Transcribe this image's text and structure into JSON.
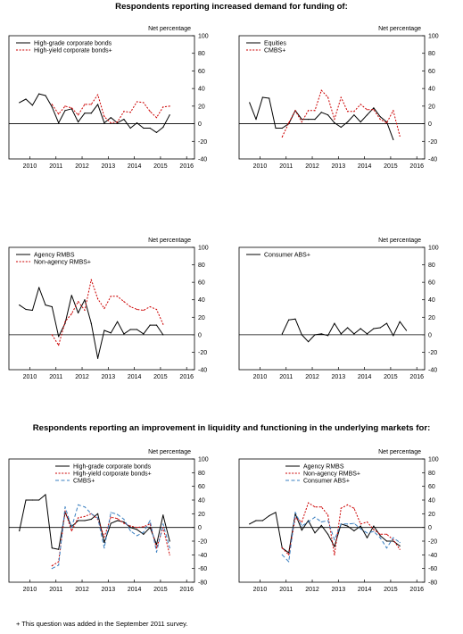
{
  "section_titles": {
    "top": "Respondents reporting increased demand for funding of:",
    "bottom": "Respondents reporting an improvement in liquidity and functioning in the underlying markets for:"
  },
  "footnote": "+ This question was added in the September 2011 survey.",
  "colors": {
    "black": "#000000",
    "red": "#cc0000",
    "blue": "#3a7fc0"
  },
  "chart_data": [
    {
      "type": "line",
      "ylabel": "Net percentage",
      "ylim": [
        -40,
        100
      ],
      "yticks": [
        "-40",
        "-20",
        "0",
        "20",
        "40",
        "60",
        "80",
        "100"
      ],
      "xticks": [
        "2010",
        "2011",
        "2012",
        "2013",
        "2014",
        "2015",
        "2016"
      ],
      "xlim": [
        2009.2,
        2016.3
      ],
      "legend": "top-left",
      "x": [
        2009.6,
        2009.85,
        2010.1,
        2010.35,
        2010.6,
        2010.85,
        2011.1,
        2011.35,
        2011.6,
        2011.85,
        2012.1,
        2012.35,
        2012.6,
        2012.85,
        2013.1,
        2013.35,
        2013.6,
        2013.85,
        2014.1,
        2014.35,
        2014.6,
        2014.85,
        2015.1,
        2015.35,
        2015.6
      ],
      "series": [
        {
          "name": "High-grade corporate bonds",
          "color": "#000000",
          "dash": "solid",
          "values": [
            24,
            28,
            21,
            34,
            32,
            19,
            1,
            15,
            17,
            2,
            12,
            12,
            22,
            1,
            7,
            1,
            5,
            -5,
            1,
            -5,
            -5,
            -10,
            -4,
            10,
            null
          ]
        },
        {
          "name": "High-yield corporate bonds+",
          "color": "#cc0000",
          "dash": "dotted",
          "values": [
            null,
            null,
            null,
            null,
            null,
            22,
            11,
            20,
            18,
            10,
            22,
            22,
            33,
            8,
            1,
            2,
            14,
            13,
            25,
            24,
            14,
            7,
            19,
            20,
            null
          ]
        }
      ]
    },
    {
      "type": "line",
      "ylabel": "Net percentage",
      "ylim": [
        -40,
        100
      ],
      "yticks": [
        "-40",
        "-20",
        "0",
        "20",
        "40",
        "60",
        "80",
        "100"
      ],
      "xticks": [
        "2010",
        "2011",
        "2012",
        "2013",
        "2014",
        "2015",
        "2016"
      ],
      "xlim": [
        2009.2,
        2016.3
      ],
      "legend": "top-left",
      "x": [
        2009.6,
        2009.85,
        2010.1,
        2010.35,
        2010.6,
        2010.85,
        2011.1,
        2011.35,
        2011.6,
        2011.85,
        2012.1,
        2012.35,
        2012.6,
        2012.85,
        2013.1,
        2013.35,
        2013.6,
        2013.85,
        2014.1,
        2014.35,
        2014.6,
        2014.85,
        2015.1,
        2015.35,
        2015.6,
        2015.8
      ],
      "series": [
        {
          "name": "Equities",
          "color": "#000000",
          "dash": "solid",
          "values": [
            24,
            5,
            30,
            29,
            -5,
            -5,
            0,
            15,
            5,
            5,
            5,
            13,
            10,
            1,
            -4,
            2,
            10,
            2,
            10,
            18,
            8,
            2,
            -18,
            null,
            null,
            null
          ]
        },
        {
          "name": "CMBS+",
          "color": "#cc0000",
          "dash": "dotted",
          "values": [
            null,
            null,
            null,
            null,
            null,
            -15,
            1,
            15,
            2,
            15,
            15,
            38,
            30,
            5,
            30,
            14,
            14,
            22,
            16,
            16,
            5,
            1,
            15,
            -14,
            null,
            null
          ]
        }
      ]
    },
    {
      "type": "line",
      "ylabel": "Net percentage",
      "ylim": [
        -40,
        100
      ],
      "yticks": [
        "-40",
        "-20",
        "0",
        "20",
        "40",
        "60",
        "80",
        "100"
      ],
      "xticks": [
        "2010",
        "2011",
        "2012",
        "2013",
        "2014",
        "2015",
        "2016"
      ],
      "xlim": [
        2009.2,
        2016.3
      ],
      "legend": "top-left",
      "x": [
        2009.6,
        2009.85,
        2010.1,
        2010.35,
        2010.6,
        2010.85,
        2011.1,
        2011.35,
        2011.6,
        2011.85,
        2012.1,
        2012.35,
        2012.6,
        2012.85,
        2013.1,
        2013.35,
        2013.6,
        2013.85,
        2014.1,
        2014.35,
        2014.6,
        2014.85,
        2015.1,
        2015.35,
        2015.6
      ],
      "series": [
        {
          "name": "Agency RMBS",
          "color": "#000000",
          "dash": "solid",
          "values": [
            34,
            29,
            28,
            54,
            34,
            32,
            -2,
            13,
            45,
            25,
            40,
            13,
            -27,
            5,
            2,
            15,
            1,
            6,
            6,
            1,
            11,
            11,
            0,
            null,
            null
          ]
        },
        {
          "name": "Non-agency RMBS+",
          "color": "#cc0000",
          "dash": "dotted",
          "values": [
            null,
            null,
            null,
            null,
            null,
            0,
            -12,
            15,
            24,
            38,
            28,
            63,
            41,
            30,
            44,
            44,
            38,
            32,
            29,
            28,
            32,
            29,
            12,
            null,
            null
          ]
        }
      ]
    },
    {
      "type": "line",
      "ylabel": "Net percentage",
      "ylim": [
        -40,
        100
      ],
      "yticks": [
        "-40",
        "-20",
        "0",
        "20",
        "40",
        "60",
        "80",
        "100"
      ],
      "xticks": [
        "2010",
        "2011",
        "2012",
        "2013",
        "2014",
        "2015",
        "2016"
      ],
      "xlim": [
        2009.2,
        2016.3
      ],
      "legend": "top-left",
      "x": [
        2009.6,
        2009.85,
        2010.1,
        2010.35,
        2010.6,
        2010.85,
        2011.1,
        2011.35,
        2011.6,
        2011.85,
        2012.1,
        2012.35,
        2012.6,
        2012.85,
        2013.1,
        2013.35,
        2013.6,
        2013.85,
        2014.1,
        2014.35,
        2014.6,
        2014.85,
        2015.1,
        2015.35,
        2015.6,
        2015.8
      ],
      "series": [
        {
          "name": "Consumer ABS+",
          "color": "#000000",
          "dash": "solid",
          "values": [
            null,
            null,
            null,
            null,
            null,
            1,
            17,
            18,
            0,
            -8,
            0,
            1,
            -1,
            13,
            1,
            8,
            1,
            7,
            1,
            7,
            8,
            13,
            -1,
            15,
            5,
            null
          ]
        }
      ]
    },
    {
      "type": "line",
      "ylabel": "Net percentage",
      "ylim": [
        -80,
        100
      ],
      "yticks": [
        "-80",
        "-60",
        "-40",
        "-20",
        "0",
        "20",
        "40",
        "60",
        "80",
        "100"
      ],
      "xticks": [
        "2010",
        "2011",
        "2012",
        "2013",
        "2014",
        "2015",
        "2016"
      ],
      "xlim": [
        2009.2,
        2016.3
      ],
      "legend": "top-right",
      "x": [
        2009.6,
        2009.85,
        2010.1,
        2010.35,
        2010.6,
        2010.85,
        2011.1,
        2011.35,
        2011.6,
        2011.85,
        2012.1,
        2012.35,
        2012.6,
        2012.85,
        2013.1,
        2013.35,
        2013.6,
        2013.85,
        2014.1,
        2014.35,
        2014.6,
        2014.85,
        2015.1,
        2015.35,
        2015.6,
        2015.8
      ],
      "series": [
        {
          "name": "High-grade corporate bonds",
          "color": "#000000",
          "dash": "solid",
          "values": [
            -5,
            40,
            40,
            40,
            48,
            -30,
            -32,
            22,
            1,
            10,
            10,
            12,
            20,
            -22,
            6,
            10,
            8,
            0,
            -3,
            -10,
            0,
            -25,
            18,
            -20,
            null,
            null
          ]
        },
        {
          "name": "High-yield corporate bonds+",
          "color": "#cc0000",
          "dash": "dotted",
          "values": [
            null,
            null,
            null,
            null,
            null,
            -56,
            -50,
            24,
            -5,
            14,
            16,
            20,
            12,
            -14,
            15,
            13,
            6,
            2,
            0,
            1,
            5,
            -30,
            0,
            -40,
            null,
            null
          ]
        },
        {
          "name": "CMBS+",
          "color": "#3a7fc0",
          "dash": "dashed",
          "values": [
            null,
            null,
            null,
            null,
            null,
            -60,
            -55,
            30,
            0,
            33,
            30,
            20,
            14,
            -30,
            22,
            19,
            12,
            -5,
            -12,
            -7,
            10,
            -36,
            5,
            -30,
            null,
            null
          ]
        }
      ]
    },
    {
      "type": "line",
      "ylabel": "Net percentage",
      "ylim": [
        -80,
        100
      ],
      "yticks": [
        "-80",
        "-60",
        "-40",
        "-20",
        "0",
        "20",
        "40",
        "60",
        "80",
        "100"
      ],
      "xticks": [
        "2010",
        "2011",
        "2012",
        "2013",
        "2014",
        "2015",
        "2016"
      ],
      "xlim": [
        2009.2,
        2016.3
      ],
      "legend": "top-right",
      "x": [
        2009.6,
        2009.85,
        2010.1,
        2010.35,
        2010.6,
        2010.85,
        2011.1,
        2011.35,
        2011.6,
        2011.85,
        2012.1,
        2012.35,
        2012.6,
        2012.85,
        2013.1,
        2013.35,
        2013.6,
        2013.85,
        2014.1,
        2014.35,
        2014.6,
        2014.85,
        2015.1,
        2015.35,
        2015.6,
        2015.8
      ],
      "series": [
        {
          "name": "Agency RMBS",
          "color": "#000000",
          "dash": "solid",
          "values": [
            5,
            10,
            10,
            17,
            22,
            -30,
            -37,
            20,
            -4,
            10,
            -8,
            3,
            -10,
            -28,
            5,
            2,
            -5,
            2,
            -15,
            2,
            -12,
            -20,
            -20,
            -27,
            null,
            null
          ]
        },
        {
          "name": "Non-agency RMBS+",
          "color": "#cc0000",
          "dash": "dotted",
          "values": [
            null,
            null,
            null,
            null,
            null,
            -30,
            -40,
            14,
            8,
            36,
            30,
            30,
            18,
            -40,
            28,
            33,
            28,
            5,
            8,
            -3,
            -10,
            -10,
            -18,
            -32,
            null,
            null
          ]
        },
        {
          "name": "Consumer ABS+",
          "color": "#3a7fc0",
          "dash": "dashed",
          "values": [
            null,
            null,
            null,
            null,
            null,
            -40,
            -50,
            22,
            2,
            8,
            15,
            8,
            10,
            -18,
            5,
            5,
            6,
            -2,
            -8,
            -6,
            -15,
            -30,
            -15,
            -22,
            null,
            null
          ]
        }
      ]
    }
  ]
}
